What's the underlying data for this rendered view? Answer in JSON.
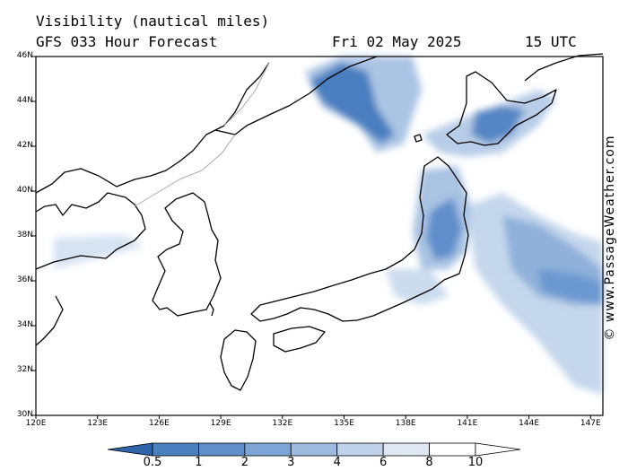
{
  "header": {
    "title": "Visibility (nautical miles)",
    "subtitle": "GFS 033 Hour Forecast",
    "date": "Fri 02 May 2025",
    "time": "15 UTC"
  },
  "credit": "© www.PassageWeather.com",
  "axes": {
    "lat_labels": [
      "46N",
      "44N",
      "42N",
      "40N",
      "38N",
      "36N",
      "34N",
      "32N",
      "30N"
    ],
    "lon_labels": [
      "120E",
      "123E",
      "126E",
      "129E",
      "132E",
      "135E",
      "138E",
      "141E",
      "144E",
      "147E"
    ]
  },
  "colorbar": {
    "labels": [
      "0.5",
      "1",
      "2",
      "3",
      "4",
      "6",
      "8",
      "10"
    ],
    "colors": [
      "#3a6fb5",
      "#4a7fc0",
      "#5f8ecb",
      "#7ea5d5",
      "#9dbbdf",
      "#bfd2ea",
      "#dfe8f4",
      "#ffffff"
    ]
  }
}
